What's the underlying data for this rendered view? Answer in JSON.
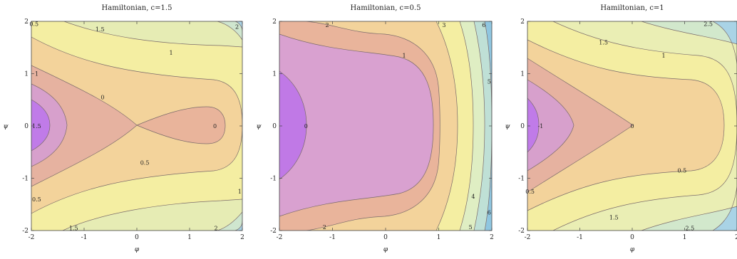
{
  "chart_data": [
    {
      "type": "contour",
      "title": "Hamiltonian, c=1.5",
      "xlabel": "φ",
      "ylabel": "ψ",
      "xlim": [
        -2,
        2
      ],
      "ylim": [
        -2,
        2
      ],
      "x_ticks": [
        "-2",
        "-1",
        "0",
        "1",
        "2"
      ],
      "y_ticks": [
        "-2",
        "-1",
        "0",
        "1",
        "2"
      ],
      "contour_labels": [
        {
          "text": "0.5",
          "x": -1.95,
          "y": 1.95
        },
        {
          "text": "1.5",
          "x": -0.7,
          "y": 1.85
        },
        {
          "text": "2",
          "x": 1.9,
          "y": 1.9
        },
        {
          "text": "1",
          "x": 0.65,
          "y": 1.4
        },
        {
          "text": "1",
          "x": -1.9,
          "y": 1.0
        },
        {
          "text": "0",
          "x": -0.65,
          "y": 0.55
        },
        {
          "text": "1.5",
          "x": -1.9,
          "y": 0.0
        },
        {
          "text": "0",
          "x": 1.48,
          "y": 0.0
        },
        {
          "text": "0.5",
          "x": 0.15,
          "y": -0.7
        },
        {
          "text": "1",
          "x": 1.95,
          "y": -1.25
        },
        {
          "text": "0.5",
          "x": -1.9,
          "y": -1.4
        },
        {
          "text": "1.5",
          "x": -1.2,
          "y": -1.95
        },
        {
          "text": "2",
          "x": 1.5,
          "y": -1.95
        }
      ]
    },
    {
      "type": "contour",
      "title": "Hamiltonian, c=0.5",
      "xlabel": "φ",
      "ylabel": "ψ",
      "xlim": [
        -2,
        2
      ],
      "ylim": [
        -2,
        2
      ],
      "x_ticks": [
        "-2",
        "-1",
        "0",
        "1",
        "2"
      ],
      "y_ticks": [
        "-2",
        "-1",
        "0",
        "1",
        "2"
      ],
      "contour_labels": [
        {
          "text": "2",
          "x": -1.1,
          "y": 1.93
        },
        {
          "text": "3",
          "x": 1.1,
          "y": 1.93
        },
        {
          "text": "6",
          "x": 1.85,
          "y": 1.93
        },
        {
          "text": "1",
          "x": 0.35,
          "y": 1.35
        },
        {
          "text": "5",
          "x": 1.95,
          "y": 0.85
        },
        {
          "text": "0",
          "x": -1.5,
          "y": 0.0
        },
        {
          "text": "4",
          "x": 1.65,
          "y": -1.35
        },
        {
          "text": "6",
          "x": 1.95,
          "y": -1.65
        },
        {
          "text": "2",
          "x": -1.15,
          "y": -1.93
        },
        {
          "text": "5",
          "x": 1.6,
          "y": -1.93
        }
      ]
    },
    {
      "type": "contour",
      "title": "Hamiltonian, c=1",
      "xlabel": "φ",
      "ylabel": "ψ",
      "xlim": [
        -2,
        2
      ],
      "ylim": [
        -2,
        2
      ],
      "x_ticks": [
        "-2",
        "-1",
        "0",
        "1",
        "2"
      ],
      "y_ticks": [
        "-2",
        "-1",
        "0",
        "1",
        "2"
      ],
      "contour_labels": [
        {
          "text": "1.5",
          "x": -0.55,
          "y": 1.6
        },
        {
          "text": "2.5",
          "x": 1.45,
          "y": 1.95
        },
        {
          "text": "1",
          "x": 0.6,
          "y": 1.35
        },
        {
          "text": "-1",
          "x": -1.75,
          "y": 0.0
        },
        {
          "text": "0",
          "x": 0.0,
          "y": 0.0
        },
        {
          "text": "0.5",
          "x": 0.95,
          "y": -0.85
        },
        {
          "text": "0.5",
          "x": -1.95,
          "y": -1.25
        },
        {
          "text": "1.5",
          "x": -0.35,
          "y": -1.75
        },
        {
          "text": "2.5",
          "x": 1.1,
          "y": -1.95
        }
      ]
    }
  ]
}
